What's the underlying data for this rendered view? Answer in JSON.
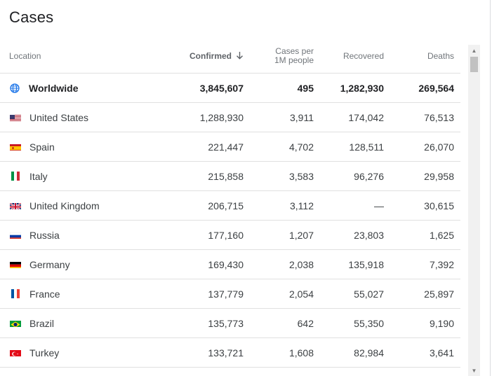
{
  "title": "Cases",
  "header": {
    "location": "Location",
    "confirmed": "Confirmed",
    "sort_icon": "arrow-down-icon",
    "per_million_line1": "Cases per",
    "per_million_line2": "1M people",
    "recovered": "Recovered",
    "deaths": "Deaths"
  },
  "rows": [
    {
      "name": "Worldwide",
      "icon": "globe-icon",
      "confirmed": "3,845,607",
      "per_million": "495",
      "recovered": "1,282,930",
      "deaths": "269,564"
    },
    {
      "name": "United States",
      "icon": "flag-us-icon",
      "confirmed": "1,288,930",
      "per_million": "3,911",
      "recovered": "174,042",
      "deaths": "76,513"
    },
    {
      "name": "Spain",
      "icon": "flag-spain-icon",
      "confirmed": "221,447",
      "per_million": "4,702",
      "recovered": "128,511",
      "deaths": "26,070"
    },
    {
      "name": "Italy",
      "icon": "flag-italy-icon",
      "confirmed": "215,858",
      "per_million": "3,583",
      "recovered": "96,276",
      "deaths": "29,958"
    },
    {
      "name": "United Kingdom",
      "icon": "flag-uk-icon",
      "confirmed": "206,715",
      "per_million": "3,112",
      "recovered": "—",
      "deaths": "30,615"
    },
    {
      "name": "Russia",
      "icon": "flag-russia-icon",
      "confirmed": "177,160",
      "per_million": "1,207",
      "recovered": "23,803",
      "deaths": "1,625"
    },
    {
      "name": "Germany",
      "icon": "flag-germany-icon",
      "confirmed": "169,430",
      "per_million": "2,038",
      "recovered": "135,918",
      "deaths": "7,392"
    },
    {
      "name": "France",
      "icon": "flag-france-icon",
      "confirmed": "137,779",
      "per_million": "2,054",
      "recovered": "55,027",
      "deaths": "25,897"
    },
    {
      "name": "Brazil",
      "icon": "flag-brazil-icon",
      "confirmed": "135,773",
      "per_million": "642",
      "recovered": "55,350",
      "deaths": "9,190"
    },
    {
      "name": "Turkey",
      "icon": "flag-turkey-icon",
      "confirmed": "133,721",
      "per_million": "1,608",
      "recovered": "82,984",
      "deaths": "3,641"
    }
  ],
  "colors": {
    "title": "#202124",
    "header_text": "#70757a",
    "body_text": "#3c4043",
    "divider": "#e0e0e0",
    "globe": "#1a73e8"
  }
}
